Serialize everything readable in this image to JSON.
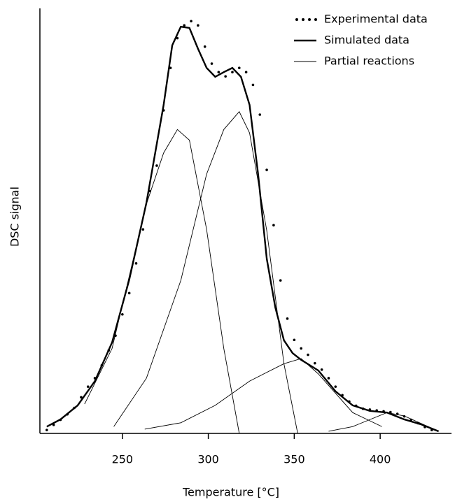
{
  "chart_data": {
    "type": "line",
    "xlabel": "Temperature  [°C]",
    "ylabel": "DSC signal",
    "xlim": [
      202,
      441.5
    ],
    "ylim": [
      0,
      100
    ],
    "xticks": [
      250,
      300,
      350,
      400
    ],
    "legend": "upper right",
    "series": [
      {
        "name": "Experimental data",
        "color": "#000000",
        "style": "dotted",
        "x": [
          206,
          210,
          214,
          218,
          222,
          226,
          230,
          234,
          238,
          242,
          246,
          250,
          254,
          258,
          262,
          266,
          270,
          274,
          278,
          282,
          286,
          290,
          294,
          298,
          302,
          306,
          310,
          314,
          318,
          322,
          326,
          330,
          334,
          338,
          342,
          346,
          350,
          354,
          358,
          362,
          366,
          370,
          374,
          378,
          382,
          386,
          390,
          394,
          398,
          402,
          406,
          410,
          414,
          418,
          422,
          426,
          430
        ],
        "values": [
          0.8,
          2,
          3.2,
          4.5,
          6,
          8.5,
          11,
          13,
          16,
          19.5,
          23,
          28,
          33,
          40,
          48,
          57,
          63,
          76,
          86,
          93,
          96,
          97,
          96,
          91,
          87,
          85,
          84,
          85,
          86,
          85,
          82,
          75,
          62,
          49,
          36,
          27,
          22,
          20,
          18.5,
          16.5,
          15,
          13,
          11,
          9,
          7.5,
          6.5,
          5.8,
          5.6,
          5.4,
          5.2,
          5,
          4.6,
          4,
          3.2,
          2.4,
          1.5,
          0.8
        ]
      },
      {
        "name": "Simulated data",
        "color": "#000000",
        "style": "thick",
        "x": [
          206,
          214,
          224,
          234,
          244,
          254,
          264,
          274,
          279,
          284,
          289,
          294,
          299,
          304,
          309,
          314,
          319,
          324,
          329,
          334,
          339,
          344,
          349,
          354,
          364,
          374,
          384,
          394,
          404,
          414,
          424,
          434
        ],
        "values": [
          1.6,
          3.3,
          6.6,
          12.3,
          21.4,
          36.2,
          54.3,
          77.3,
          91.3,
          95.7,
          95.4,
          90.5,
          86,
          83.9,
          85,
          86,
          83.9,
          77.3,
          60.9,
          41.1,
          29.6,
          21.9,
          18.9,
          17.3,
          14.8,
          9.9,
          6.6,
          5.3,
          4.9,
          3.3,
          2.1,
          0.5
        ]
      }
    ],
    "partial_reactions": {
      "name": "Partial reactions",
      "color": "#000000",
      "style": "thin",
      "curves": [
        {
          "x": [
            228,
            244,
            264,
            274,
            282,
            289,
            299,
            309,
            318
          ],
          "values": [
            6.9,
            20,
            54,
            66,
            71.5,
            69,
            48,
            20,
            0
          ]
        },
        {
          "x": [
            245,
            264,
            284,
            299,
            309,
            318,
            324,
            334,
            344,
            352
          ],
          "values": [
            1.6,
            13,
            36,
            61,
            71.5,
            75.7,
            70.7,
            47.7,
            16.4,
            0
          ]
        },
        {
          "x": [
            263,
            284,
            304,
            324,
            344,
            354,
            364,
            384,
            401
          ],
          "values": [
            1,
            2.5,
            6.6,
            12.3,
            16.4,
            17.6,
            14,
            4.9,
            1.6
          ]
        },
        {
          "x": [
            370,
            384,
            404,
            414,
            434
          ],
          "values": [
            0.5,
            1.6,
            4.9,
            4.1,
            0.5
          ]
        }
      ]
    }
  }
}
